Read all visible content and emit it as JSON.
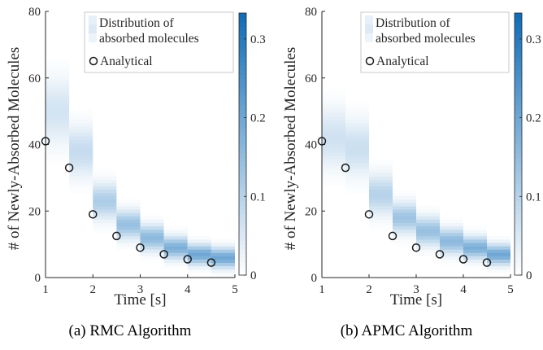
{
  "colors": {
    "cmap_low": "#ffffff",
    "cmap_high": "#0f6cb8",
    "marker_edge": "#1a1a1a",
    "axis": "#262626"
  },
  "chart_data": [
    {
      "type": "heatmap",
      "panel_caption": "(a) RMC Algorithm",
      "xlabel": "Time [s]",
      "ylabel": "# of Newly-Absorbed Molecules",
      "xlim": [
        1,
        5
      ],
      "ylim": [
        0,
        80
      ],
      "xticks": [
        "1",
        "2",
        "3",
        "4",
        "5"
      ],
      "yticks": [
        "0",
        "20",
        "40",
        "60",
        "80"
      ],
      "colorbar": {
        "range": [
          0,
          0.333
        ],
        "ticks": [
          "0",
          "0.1",
          "0.2",
          "0.3"
        ]
      },
      "legend": {
        "placement": "top-right",
        "entries": [
          "Distribution of absorbed molecules",
          "Analytical"
        ]
      },
      "analytical": {
        "x": [
          1,
          1.5,
          2,
          2.5,
          3,
          3.5,
          4,
          4.5
        ],
        "y": [
          41,
          33,
          19,
          12.5,
          9,
          7,
          5.5,
          4.5
        ]
      },
      "distribution": [
        {
          "x0": 1.0,
          "x1": 1.5,
          "mean": 50,
          "sd": 6.5,
          "ymin": 30,
          "ymax": 70
        },
        {
          "x0": 1.5,
          "x1": 2.0,
          "mean": 38,
          "sd": 5,
          "ymin": 24,
          "ymax": 54
        },
        {
          "x0": 2.0,
          "x1": 2.5,
          "mean": 23,
          "sd": 3.5,
          "ymin": 14,
          "ymax": 34
        },
        {
          "x0": 2.5,
          "x1": 3.0,
          "mean": 16,
          "sd": 2.8,
          "ymin": 8,
          "ymax": 25
        },
        {
          "x0": 3.0,
          "x1": 3.5,
          "mean": 12,
          "sd": 2.5,
          "ymin": 5,
          "ymax": 20
        },
        {
          "x0": 3.5,
          "x1": 4.0,
          "mean": 9,
          "sd": 2.2,
          "ymin": 3,
          "ymax": 16
        },
        {
          "x0": 4.0,
          "x1": 4.5,
          "mean": 7,
          "sd": 2,
          "ymin": 2,
          "ymax": 13
        },
        {
          "x0": 4.5,
          "x1": 5.0,
          "mean": 6,
          "sd": 2,
          "ymin": 1,
          "ymax": 12
        }
      ]
    },
    {
      "type": "heatmap",
      "panel_caption": "(b) APMC Algorithm",
      "xlabel": "Time [s]",
      "ylabel": "# of Newly-Absorbed Molecules",
      "xlim": [
        1,
        5
      ],
      "ylim": [
        0,
        80
      ],
      "xticks": [
        "1",
        "2",
        "3",
        "4",
        "5"
      ],
      "yticks": [
        "0",
        "20",
        "40",
        "60",
        "80"
      ],
      "colorbar": {
        "range": [
          0,
          0.333
        ],
        "ticks": [
          "0",
          "0.1",
          "0.2",
          "0.3"
        ]
      },
      "legend": {
        "placement": "top-right",
        "entries": [
          "Distribution of absorbed molecules",
          "Analytical"
        ]
      },
      "analytical": {
        "x": [
          1,
          1.5,
          2,
          2.5,
          3,
          3.5,
          4,
          4.5
        ],
        "y": [
          41,
          33,
          19,
          12.5,
          9,
          7,
          5.5,
          4.5
        ]
      },
      "distribution": [
        {
          "x0": 1.0,
          "x1": 1.5,
          "mean": 42,
          "sd": 6,
          "ymin": 24,
          "ymax": 64
        },
        {
          "x0": 1.5,
          "x1": 2.0,
          "mean": 39,
          "sd": 5.5,
          "ymin": 22,
          "ymax": 60
        },
        {
          "x0": 2.0,
          "x1": 2.5,
          "mean": 25,
          "sd": 4,
          "ymin": 12,
          "ymax": 40
        },
        {
          "x0": 2.5,
          "x1": 3.0,
          "mean": 18,
          "sd": 3,
          "ymin": 8,
          "ymax": 30
        },
        {
          "x0": 3.0,
          "x1": 3.5,
          "mean": 14,
          "sd": 2.8,
          "ymin": 5,
          "ymax": 24
        },
        {
          "x0": 3.5,
          "x1": 4.0,
          "mean": 11,
          "sd": 2.5,
          "ymin": 3,
          "ymax": 20
        },
        {
          "x0": 4.0,
          "x1": 4.5,
          "mean": 9,
          "sd": 2.2,
          "ymin": 2,
          "ymax": 17
        },
        {
          "x0": 4.5,
          "x1": 5.0,
          "mean": 7,
          "sd": 2,
          "ymin": 1,
          "ymax": 14
        }
      ]
    }
  ]
}
